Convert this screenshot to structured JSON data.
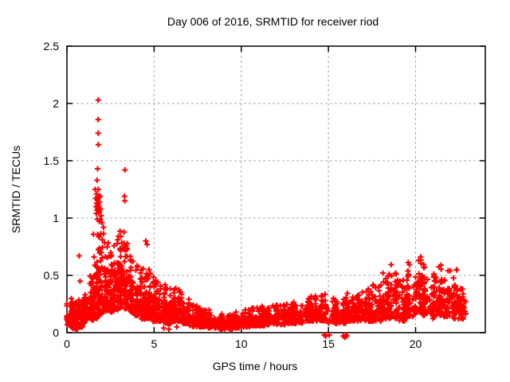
{
  "page": {
    "background": "#ffffff"
  },
  "chart_data": {
    "type": "scatter",
    "title": "Day 006 of 2016, SRMTID for receiver riod",
    "xlabel": "GPS time / hours",
    "ylabel": "SRMTID / TECUs",
    "xlim": [
      0,
      24
    ],
    "ylim": [
      0,
      2.5
    ],
    "xticks": [
      0,
      5,
      10,
      15,
      20
    ],
    "xtick_labels": [
      "0",
      "5",
      "10",
      "15",
      "20"
    ],
    "yticks": [
      0,
      0.5,
      1,
      1.5,
      2,
      2.5
    ],
    "ytick_labels": [
      "0",
      "0.5",
      "1",
      "1.5",
      "2",
      "2.5"
    ],
    "grid": true,
    "legend_position": "none",
    "marker": {
      "shape": "plus",
      "color": "#ff0000",
      "size": 7,
      "stroke_width": 2
    },
    "grid_color": "#a8a8a8",
    "border_color": "#000000",
    "render_seed": 7,
    "band_segments": [
      [
        0.0,
        0.3,
        55,
        0.05,
        0.3
      ],
      [
        0.3,
        0.6,
        55,
        0.03,
        0.26
      ],
      [
        0.6,
        0.9,
        50,
        0.05,
        0.3
      ],
      [
        0.9,
        1.2,
        48,
        0.08,
        0.36
      ],
      [
        1.2,
        1.5,
        45,
        0.1,
        0.5
      ],
      [
        1.5,
        1.8,
        50,
        0.12,
        0.88
      ],
      [
        1.8,
        2.1,
        55,
        0.15,
        0.95
      ],
      [
        2.1,
        2.4,
        50,
        0.18,
        0.92
      ],
      [
        2.4,
        2.7,
        48,
        0.18,
        0.8
      ],
      [
        2.7,
        3.0,
        48,
        0.2,
        0.85
      ],
      [
        3.0,
        3.3,
        50,
        0.22,
        0.9
      ],
      [
        3.3,
        3.6,
        50,
        0.2,
        0.8
      ],
      [
        3.6,
        3.9,
        50,
        0.18,
        0.68
      ],
      [
        3.9,
        4.2,
        50,
        0.15,
        0.62
      ],
      [
        4.2,
        4.5,
        50,
        0.12,
        0.6
      ],
      [
        4.5,
        4.8,
        50,
        0.12,
        0.56
      ],
      [
        4.8,
        5.1,
        50,
        0.1,
        0.5
      ],
      [
        5.1,
        5.4,
        46,
        0.1,
        0.46
      ],
      [
        5.4,
        5.7,
        46,
        0.08,
        0.42
      ],
      [
        5.7,
        6.0,
        46,
        0.08,
        0.4
      ],
      [
        6.0,
        6.3,
        46,
        0.1,
        0.42
      ],
      [
        6.3,
        6.6,
        46,
        0.1,
        0.38
      ],
      [
        6.6,
        7.0,
        50,
        0.08,
        0.32
      ],
      [
        7.0,
        7.5,
        55,
        0.05,
        0.26
      ],
      [
        7.5,
        8.0,
        55,
        0.05,
        0.22
      ],
      [
        8.0,
        8.5,
        55,
        0.04,
        0.2
      ],
      [
        8.5,
        9.0,
        55,
        0.03,
        0.18
      ],
      [
        9.0,
        9.5,
        55,
        0.03,
        0.16
      ],
      [
        9.5,
        10.0,
        55,
        0.04,
        0.18
      ],
      [
        10.0,
        10.5,
        55,
        0.05,
        0.2
      ],
      [
        10.5,
        11.0,
        55,
        0.06,
        0.22
      ],
      [
        11.0,
        11.5,
        55,
        0.06,
        0.23
      ],
      [
        11.5,
        12.0,
        55,
        0.07,
        0.24
      ],
      [
        12.0,
        12.5,
        55,
        0.07,
        0.25
      ],
      [
        12.5,
        13.0,
        55,
        0.08,
        0.26
      ],
      [
        13.0,
        13.5,
        55,
        0.08,
        0.28
      ],
      [
        13.5,
        14.0,
        55,
        0.1,
        0.3
      ],
      [
        14.0,
        14.5,
        55,
        0.1,
        0.33
      ],
      [
        14.5,
        15.0,
        50,
        0.1,
        0.35
      ],
      [
        15.0,
        15.5,
        46,
        0.08,
        0.3
      ],
      [
        15.5,
        16.0,
        46,
        0.08,
        0.3
      ],
      [
        16.0,
        16.5,
        50,
        0.1,
        0.35
      ],
      [
        16.5,
        17.0,
        50,
        0.1,
        0.38
      ],
      [
        17.0,
        17.5,
        50,
        0.1,
        0.4
      ],
      [
        17.5,
        18.0,
        50,
        0.1,
        0.43
      ],
      [
        18.0,
        18.5,
        50,
        0.12,
        0.55
      ],
      [
        18.5,
        19.0,
        50,
        0.12,
        0.6
      ],
      [
        19.0,
        19.5,
        46,
        0.1,
        0.46
      ],
      [
        19.5,
        20.0,
        50,
        0.14,
        0.62
      ],
      [
        20.0,
        20.4,
        45,
        0.18,
        0.67
      ],
      [
        20.4,
        20.8,
        45,
        0.15,
        0.6
      ],
      [
        20.8,
        21.2,
        45,
        0.12,
        0.52
      ],
      [
        21.2,
        21.6,
        45,
        0.15,
        0.63
      ],
      [
        21.6,
        22.0,
        45,
        0.14,
        0.55
      ],
      [
        22.0,
        22.4,
        42,
        0.12,
        0.56
      ],
      [
        22.4,
        22.9,
        45,
        0.12,
        0.42
      ]
    ],
    "spike_points": [
      [
        0.7,
        0.67
      ],
      [
        0.75,
        0.45
      ],
      [
        1.79,
        2.03
      ],
      [
        1.79,
        1.86
      ],
      [
        1.79,
        1.74
      ],
      [
        1.8,
        1.64
      ],
      [
        1.76,
        1.43
      ],
      [
        1.73,
        1.33
      ],
      [
        1.62,
        1.25
      ],
      [
        1.64,
        1.17
      ],
      [
        1.66,
        1.1
      ],
      [
        1.68,
        1.04
      ],
      [
        1.7,
        1.21
      ],
      [
        1.71,
        1.13
      ],
      [
        1.73,
        1.07
      ],
      [
        1.74,
        0.99
      ],
      [
        1.76,
        1.16
      ],
      [
        1.77,
        1.09
      ],
      [
        1.79,
        1.25
      ],
      [
        1.8,
        1.12
      ],
      [
        1.81,
        1.05
      ],
      [
        1.83,
        1.18
      ],
      [
        1.84,
        1.1
      ],
      [
        1.85,
        0.97
      ],
      [
        1.87,
        1.14
      ],
      [
        1.88,
        1.06
      ],
      [
        1.9,
        1.19
      ],
      [
        1.91,
        0.99
      ],
      [
        1.93,
        1.08
      ],
      [
        1.96,
        1.02
      ],
      [
        2.0,
        0.96
      ],
      [
        3.33,
        1.42
      ],
      [
        3.3,
        1.19
      ],
      [
        3.32,
        1.15
      ],
      [
        4.52,
        0.8
      ],
      [
        4.6,
        0.77
      ],
      [
        5.55,
        0.04
      ],
      [
        5.85,
        0.03
      ],
      [
        6.3,
        0.05
      ],
      [
        14.75,
        -0.02
      ],
      [
        14.85,
        -0.03
      ],
      [
        15.05,
        -0.02
      ],
      [
        15.85,
        -0.03
      ],
      [
        15.95,
        -0.04
      ],
      [
        16.0,
        -0.02
      ],
      [
        16.05,
        -0.03
      ]
    ]
  }
}
